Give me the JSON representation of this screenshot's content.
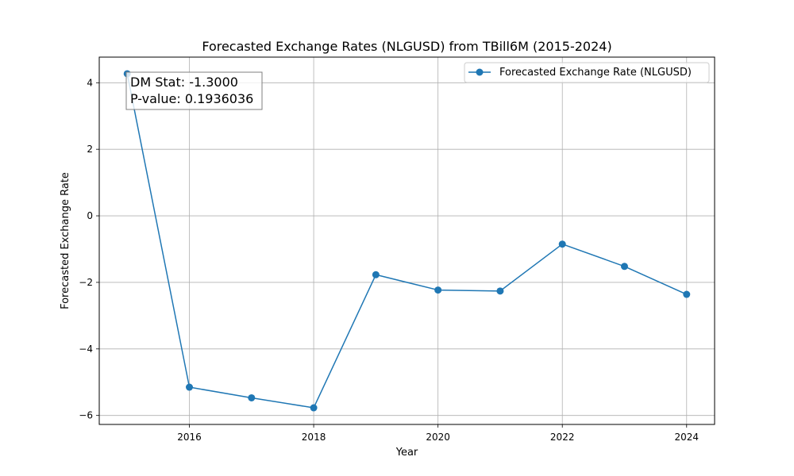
{
  "chart_data": {
    "type": "line",
    "title": "Forecasted Exchange Rates (NLGUSD) from TBill6M (2015-2024)",
    "xlabel": "Year",
    "ylabel": "Forecasted Exchange Rate",
    "x": [
      2015,
      2016,
      2017,
      2018,
      2019,
      2020,
      2021,
      2022,
      2023,
      2024
    ],
    "series": [
      {
        "name": "Forecasted Exchange Rate (NLGUSD)",
        "values": [
          4.27,
          -5.15,
          -5.47,
          -5.77,
          -1.77,
          -2.23,
          -2.26,
          -0.85,
          -1.52,
          -2.36
        ],
        "color": "#1f77b4",
        "marker": "circle"
      }
    ],
    "xlim": [
      2014.55,
      2024.45
    ],
    "ylim": [
      -6.27,
      4.77
    ],
    "xticks": [
      2016,
      2018,
      2020,
      2022,
      2024
    ],
    "yticks": [
      -6,
      -4,
      -2,
      0,
      2,
      4
    ],
    "grid": true,
    "legend": {
      "position": "top-right",
      "entries": [
        "Forecasted Exchange Rate (NLGUSD)"
      ]
    },
    "annotation": {
      "lines": [
        "DM Stat: -1.3000",
        "P-value: 0.1936036"
      ],
      "position": "top-left"
    }
  }
}
